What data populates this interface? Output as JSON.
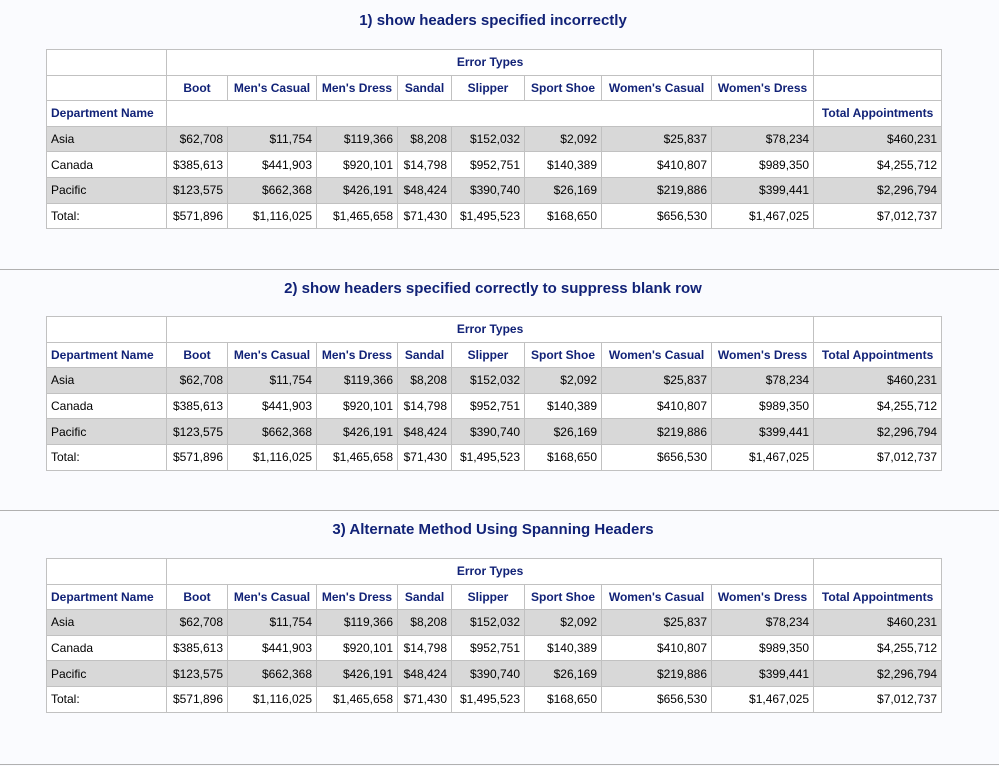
{
  "sections": [
    {
      "title": "1) show headers specified incorrectly",
      "blank_header_row": true,
      "spanning_header": "Error Types",
      "row_header": "Department Name",
      "columns": [
        "Boot",
        "Men's Casual",
        "Men's Dress",
        "Sandal",
        "Slipper",
        "Sport Shoe",
        "Women's Casual",
        "Women's Dress"
      ],
      "total_header": "Total Appointments",
      "rows": [
        {
          "label": "Asia",
          "values": [
            "$62,708",
            "$11,754",
            "$119,366",
            "$8,208",
            "$152,032",
            "$2,092",
            "$25,837",
            "$78,234",
            "$460,231"
          ]
        },
        {
          "label": "Canada",
          "values": [
            "$385,613",
            "$441,903",
            "$920,101",
            "$14,798",
            "$952,751",
            "$140,389",
            "$410,807",
            "$989,350",
            "$4,255,712"
          ]
        },
        {
          "label": "Pacific",
          "values": [
            "$123,575",
            "$662,368",
            "$426,191",
            "$48,424",
            "$390,740",
            "$26,169",
            "$219,886",
            "$399,441",
            "$2,296,794"
          ]
        },
        {
          "label": "Total:",
          "values": [
            "$571,896",
            "$1,116,025",
            "$1,465,658",
            "$71,430",
            "$1,495,523",
            "$168,650",
            "$656,530",
            "$1,467,025",
            "$7,012,737"
          ]
        }
      ]
    },
    {
      "title": "2) show headers specified correctly to suppress blank row",
      "blank_header_row": false,
      "spanning_header": "Error Types",
      "row_header": "Department Name",
      "columns": [
        "Boot",
        "Men's Casual",
        "Men's Dress",
        "Sandal",
        "Slipper",
        "Sport Shoe",
        "Women's Casual",
        "Women's Dress"
      ],
      "total_header": "Total Appointments",
      "rows": [
        {
          "label": "Asia",
          "values": [
            "$62,708",
            "$11,754",
            "$119,366",
            "$8,208",
            "$152,032",
            "$2,092",
            "$25,837",
            "$78,234",
            "$460,231"
          ]
        },
        {
          "label": "Canada",
          "values": [
            "$385,613",
            "$441,903",
            "$920,101",
            "$14,798",
            "$952,751",
            "$140,389",
            "$410,807",
            "$989,350",
            "$4,255,712"
          ]
        },
        {
          "label": "Pacific",
          "values": [
            "$123,575",
            "$662,368",
            "$426,191",
            "$48,424",
            "$390,740",
            "$26,169",
            "$219,886",
            "$399,441",
            "$2,296,794"
          ]
        },
        {
          "label": "Total:",
          "values": [
            "$571,896",
            "$1,116,025",
            "$1,465,658",
            "$71,430",
            "$1,495,523",
            "$168,650",
            "$656,530",
            "$1,467,025",
            "$7,012,737"
          ]
        }
      ]
    },
    {
      "title": "3) Alternate Method Using Spanning Headers",
      "blank_header_row": false,
      "spanning_header": "Error Types",
      "row_header": "Department Name",
      "columns": [
        "Boot",
        "Men's Casual",
        "Men's Dress",
        "Sandal",
        "Slipper",
        "Sport Shoe",
        "Women's Casual",
        "Women's Dress"
      ],
      "total_header": "Total Appointments",
      "rows": [
        {
          "label": "Asia",
          "values": [
            "$62,708",
            "$11,754",
            "$119,366",
            "$8,208",
            "$152,032",
            "$2,092",
            "$25,837",
            "$78,234",
            "$460,231"
          ]
        },
        {
          "label": "Canada",
          "values": [
            "$385,613",
            "$441,903",
            "$920,101",
            "$14,798",
            "$952,751",
            "$140,389",
            "$410,807",
            "$989,350",
            "$4,255,712"
          ]
        },
        {
          "label": "Pacific",
          "values": [
            "$123,575",
            "$662,368",
            "$426,191",
            "$48,424",
            "$390,740",
            "$26,169",
            "$219,886",
            "$399,441",
            "$2,296,794"
          ]
        },
        {
          "label": "Total:",
          "values": [
            "$571,896",
            "$1,116,025",
            "$1,465,658",
            "$71,430",
            "$1,495,523",
            "$168,650",
            "$656,530",
            "$1,467,025",
            "$7,012,737"
          ]
        }
      ]
    }
  ]
}
